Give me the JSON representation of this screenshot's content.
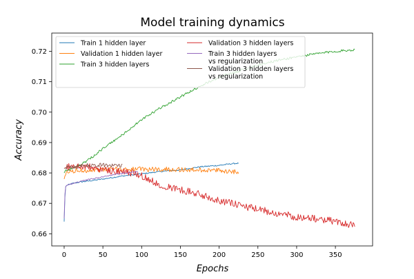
{
  "chart_data": {
    "type": "line",
    "title": "Model training dynamics",
    "xlabel": "Epochs",
    "ylabel": "Accuracy",
    "xlim": [
      -16,
      398
    ],
    "ylim": [
      0.656,
      0.726
    ],
    "xticks": [
      0,
      50,
      100,
      150,
      200,
      250,
      300,
      350
    ],
    "yticks": [
      0.66,
      0.67,
      0.68,
      0.69,
      0.7,
      0.71,
      0.72
    ],
    "ytick_labels": [
      "0.66",
      "0.67",
      "0.68",
      "0.69",
      "0.70",
      "0.71",
      "0.72"
    ],
    "grid": false,
    "legend_position": "upper-left, two columns",
    "series": [
      {
        "name": "Train 1 hidden layer",
        "color": "#1f77b4",
        "x": [
          0,
          1,
          2,
          4,
          7,
          10,
          20,
          30,
          50,
          75,
          100,
          125,
          150,
          175,
          200,
          215,
          225
        ],
        "y": [
          0.664,
          0.672,
          0.6755,
          0.676,
          0.6762,
          0.6765,
          0.677,
          0.6773,
          0.678,
          0.679,
          0.6797,
          0.6805,
          0.681,
          0.682,
          0.6825,
          0.683,
          0.6832
        ],
        "noise": 0.0002
      },
      {
        "name": "Validation 1 hidden layer",
        "color": "#ff7f0e",
        "x": [
          0,
          1,
          3,
          6,
          10,
          20,
          40,
          60,
          80,
          100,
          120,
          140,
          160,
          180,
          200,
          215,
          225
        ],
        "y": [
          0.678,
          0.679,
          0.6798,
          0.6803,
          0.6805,
          0.6808,
          0.681,
          0.6812,
          0.6813,
          0.6812,
          0.6812,
          0.6812,
          0.681,
          0.681,
          0.6808,
          0.6805,
          0.6805
        ],
        "noise": 0.0008
      },
      {
        "name": "Train 3 hidden layers",
        "color": "#2ca02c",
        "x": [
          0,
          2,
          5,
          10,
          20,
          30,
          50,
          75,
          100,
          125,
          150,
          175,
          200,
          225,
          250,
          275,
          300,
          325,
          350,
          375
        ],
        "y": [
          0.68,
          0.681,
          0.681,
          0.6815,
          0.6825,
          0.684,
          0.688,
          0.6925,
          0.6975,
          0.7015,
          0.705,
          0.7085,
          0.7115,
          0.7135,
          0.7155,
          0.717,
          0.7182,
          0.7192,
          0.72,
          0.7205
        ],
        "noise": 0.0004
      },
      {
        "name": "Validation 3 hidden layers",
        "color": "#d62728",
        "x": [
          0,
          5,
          10,
          20,
          30,
          40,
          50,
          60,
          70,
          80,
          90,
          100,
          110,
          120,
          140,
          160,
          180,
          200,
          220,
          240,
          260,
          280,
          300,
          320,
          340,
          360,
          375
        ],
        "y": [
          0.6815,
          0.682,
          0.6822,
          0.6822,
          0.682,
          0.6815,
          0.681,
          0.6808,
          0.6805,
          0.6802,
          0.68,
          0.679,
          0.6778,
          0.6765,
          0.675,
          0.674,
          0.6725,
          0.671,
          0.6698,
          0.6685,
          0.6675,
          0.6665,
          0.6655,
          0.665,
          0.6645,
          0.6635,
          0.6628
        ],
        "noise": 0.0012
      },
      {
        "name": "Train 3 hidden layers\nvs regularization",
        "color": "#9467bd",
        "x": [
          0,
          1,
          2,
          4,
          8,
          15,
          25,
          35,
          45,
          55,
          65,
          75,
          85,
          95
        ],
        "y": [
          0.665,
          0.673,
          0.6755,
          0.676,
          0.6763,
          0.6768,
          0.6775,
          0.678,
          0.6785,
          0.679,
          0.6795,
          0.6798,
          0.6802,
          0.6805
        ],
        "noise": 0.0002
      },
      {
        "name": "Validation 3 hidden layers\nvs regularization",
        "color": "#8c564b",
        "x": [
          0,
          3,
          6,
          10,
          20,
          30,
          40,
          50,
          60,
          70,
          75
        ],
        "y": [
          0.6815,
          0.6818,
          0.682,
          0.682,
          0.6822,
          0.6825,
          0.6826,
          0.6826,
          0.6825,
          0.6825,
          0.6825
        ],
        "noise": 0.0007
      }
    ]
  }
}
